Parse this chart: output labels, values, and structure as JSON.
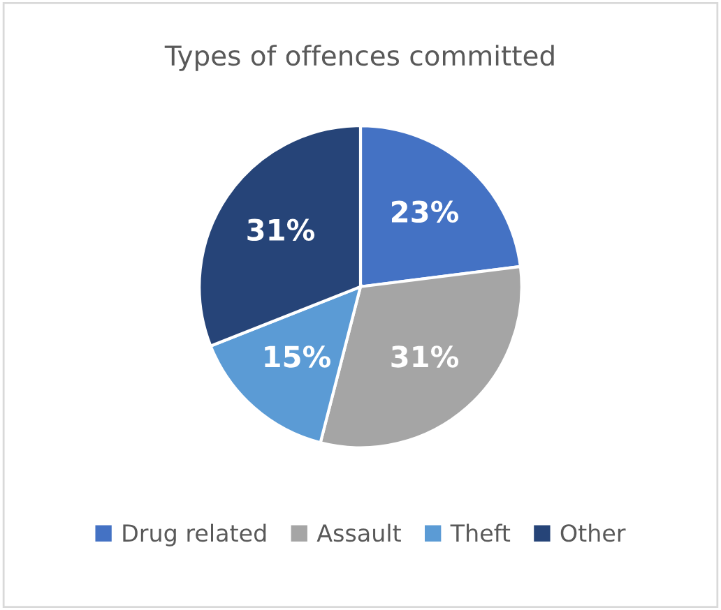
{
  "chart_data": {
    "type": "pie",
    "title": "Types of offences committed",
    "categories": [
      "Drug related",
      "Assault",
      "Theft",
      "Other"
    ],
    "values": [
      23,
      31,
      15,
      31
    ],
    "colors": [
      "#4472c4",
      "#a5a5a5",
      "#5b9bd5",
      "#264478"
    ],
    "value_labels": [
      "23%",
      "31%",
      "15%",
      "31%"
    ],
    "legend": "bottom"
  }
}
